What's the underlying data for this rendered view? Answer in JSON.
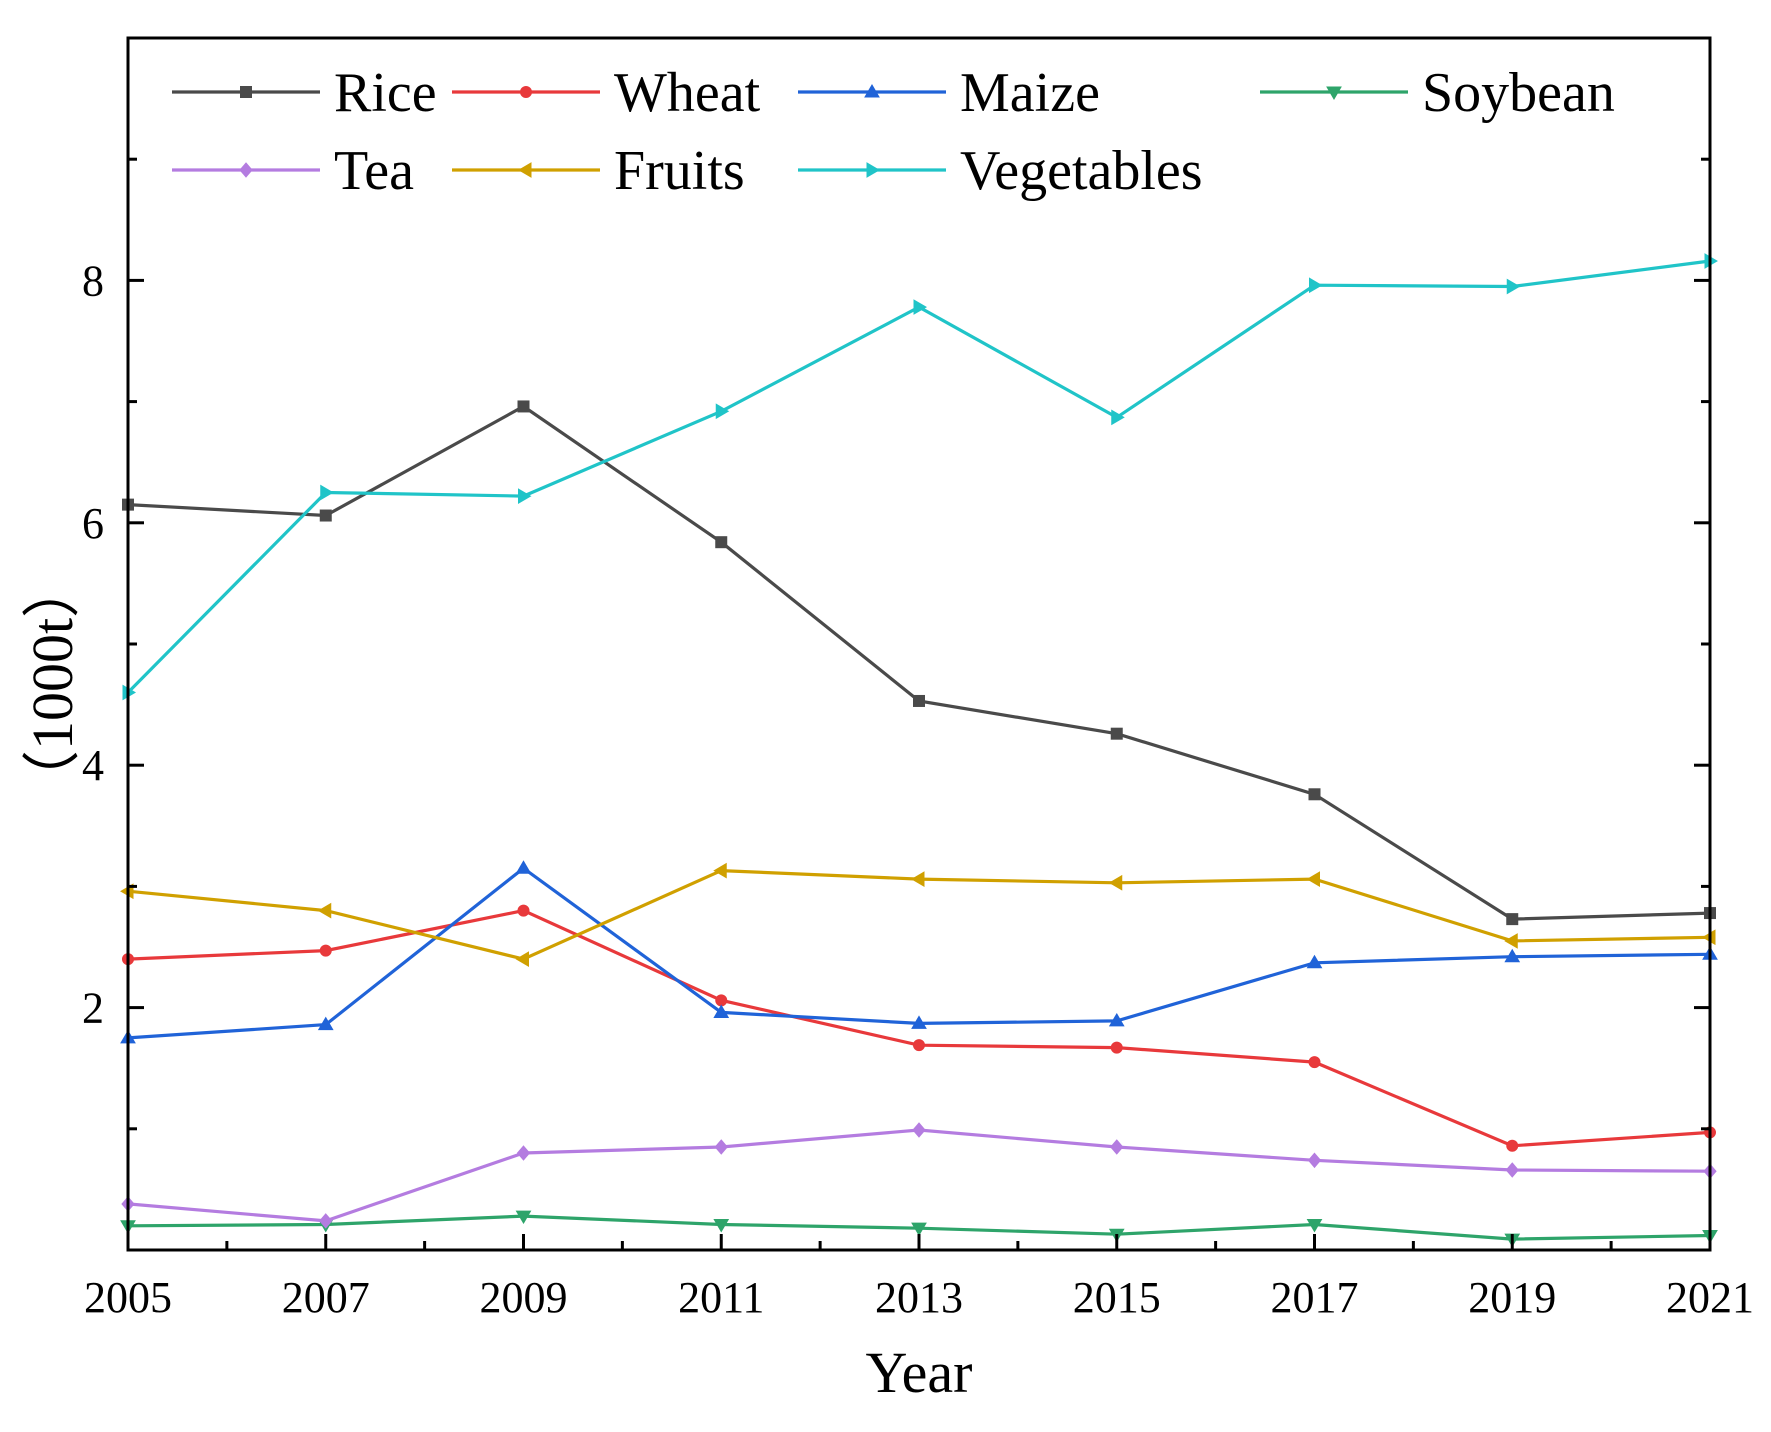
{
  "chart_data": {
    "type": "line",
    "title": "",
    "xlabel": "Year",
    "ylabel": "（1000t）",
    "xlim": [
      2005,
      2021
    ],
    "ylim": [
      0,
      10
    ],
    "xticks": [
      2005,
      2007,
      2009,
      2011,
      2013,
      2015,
      2017,
      2019,
      2021
    ],
    "yticks": [
      2,
      4,
      6,
      8
    ],
    "x": [
      2005,
      2007,
      2009,
      2011,
      2013,
      2015,
      2017,
      2019,
      2021
    ],
    "legend_position": "top",
    "series": [
      {
        "name": "Rice",
        "color": "#4a4a4a",
        "marker": "square",
        "values": [
          6.15,
          6.06,
          6.96,
          5.84,
          4.53,
          4.26,
          3.76,
          2.73,
          2.78
        ]
      },
      {
        "name": "Wheat",
        "color": "#e8393b",
        "marker": "circle",
        "values": [
          2.4,
          2.47,
          2.8,
          2.06,
          1.69,
          1.67,
          1.55,
          0.86,
          0.97
        ]
      },
      {
        "name": "Maize",
        "color": "#2063d8",
        "marker": "triangle-up",
        "values": [
          1.75,
          1.86,
          3.15,
          1.96,
          1.87,
          1.89,
          2.37,
          2.42,
          2.44
        ]
      },
      {
        "name": "Soybean",
        "color": "#2ea46a",
        "marker": "triangle-down",
        "values": [
          0.2,
          0.21,
          0.28,
          0.21,
          0.18,
          0.13,
          0.21,
          0.09,
          0.12
        ]
      },
      {
        "name": "Tea",
        "color": "#b47ce0",
        "marker": "diamond",
        "values": [
          0.38,
          0.24,
          0.8,
          0.85,
          0.99,
          0.85,
          0.74,
          0.66,
          0.65
        ]
      },
      {
        "name": "Fruits",
        "color": "#d0a000",
        "marker": "triangle-left",
        "values": [
          2.96,
          2.8,
          2.4,
          3.13,
          3.06,
          3.03,
          3.06,
          2.55,
          2.58
        ]
      },
      {
        "name": "Vegetables",
        "color": "#20c4c8",
        "marker": "triangle-right",
        "values": [
          4.6,
          6.25,
          6.22,
          6.92,
          7.78,
          6.87,
          7.96,
          7.95,
          8.16
        ]
      }
    ]
  }
}
